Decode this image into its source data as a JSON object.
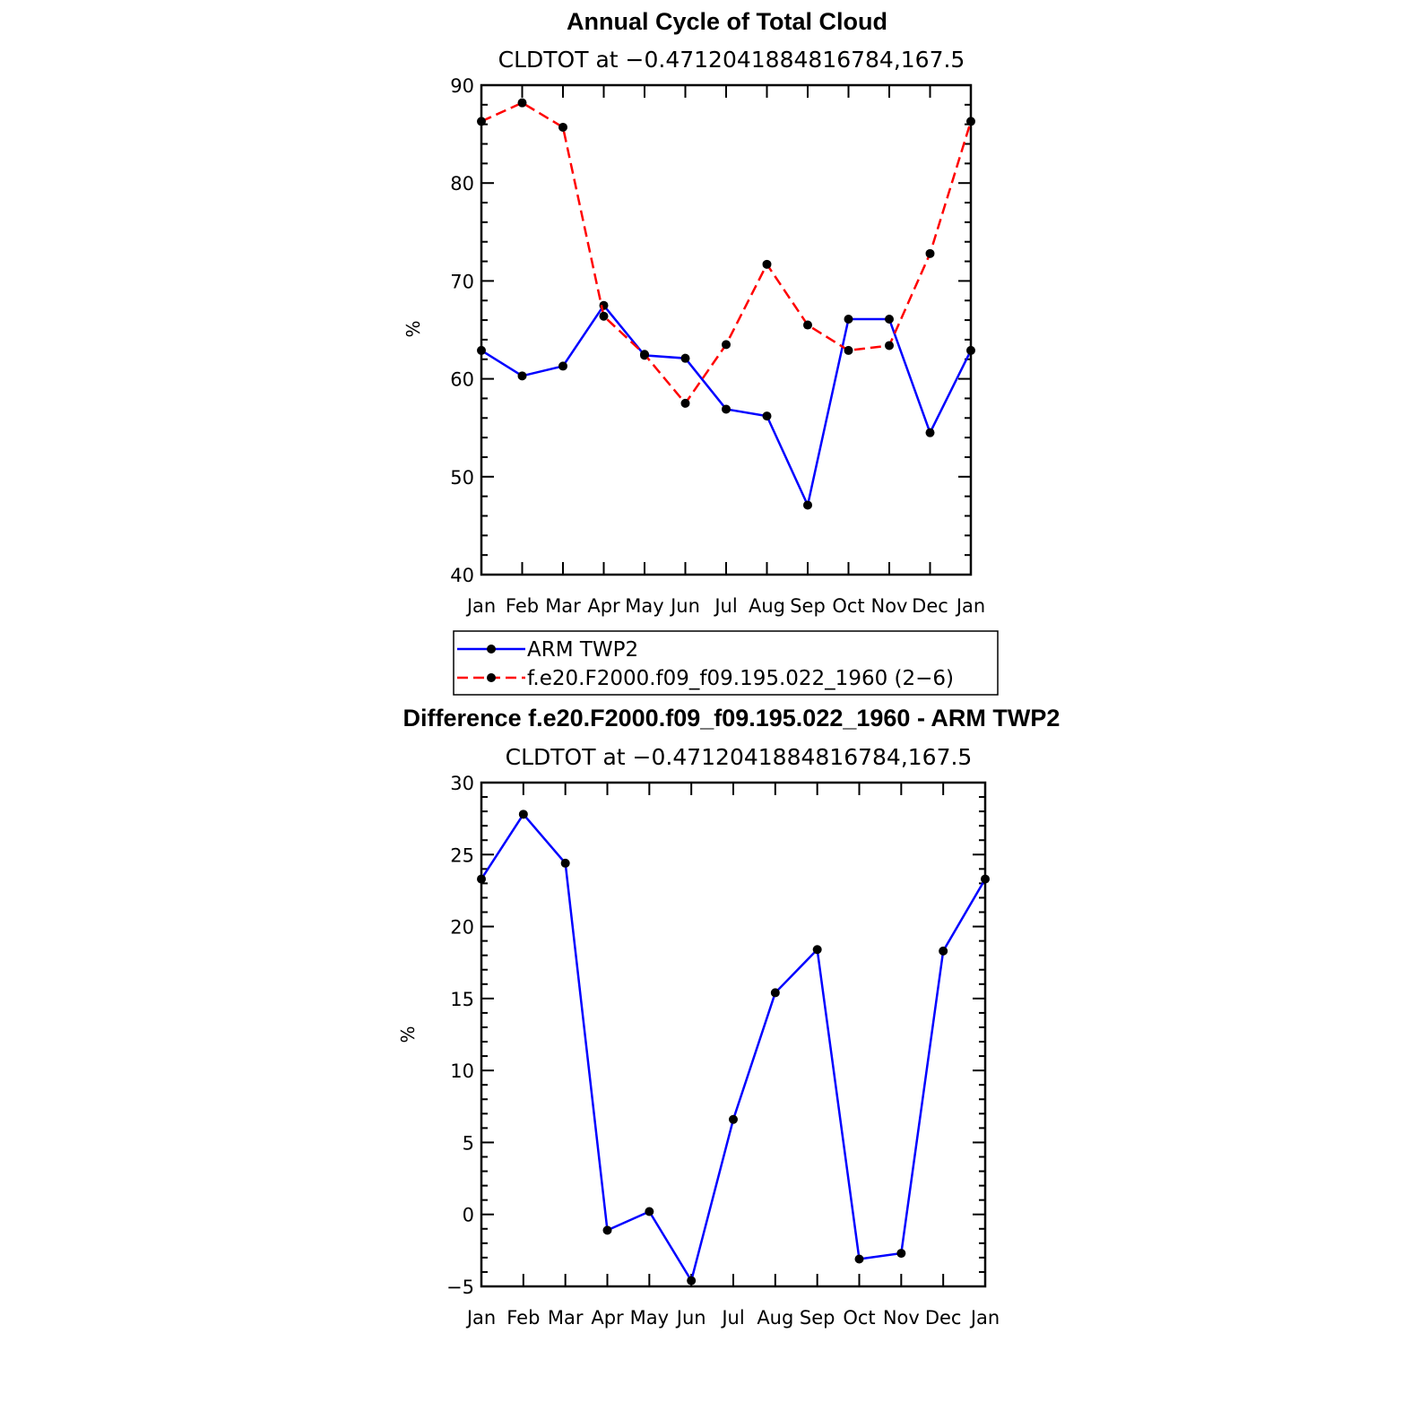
{
  "chart_data": [
    {
      "type": "line",
      "title": "Annual Cycle of Total Cloud",
      "subtitle": "CLDTOT at −0.4712041884816784,167.5",
      "xlabel": "",
      "ylabel": "%",
      "categories": [
        "Jan",
        "Feb",
        "Mar",
        "Apr",
        "May",
        "Jun",
        "Jul",
        "Aug",
        "Sep",
        "Oct",
        "Nov",
        "Dec",
        "Jan"
      ],
      "ylim": [
        40,
        90
      ],
      "yticks": [
        "40",
        "50",
        "60",
        "70",
        "80",
        "90"
      ],
      "grid": false,
      "legend": "below",
      "series": [
        {
          "name": "ARM TWP2",
          "color": "#0000ff",
          "dash": "solid",
          "values": [
            62.9,
            60.3,
            61.3,
            67.5,
            62.4,
            62.1,
            56.9,
            56.2,
            47.1,
            66.1,
            66.1,
            54.5,
            62.9
          ]
        },
        {
          "name": "f.e20.F2000.f09_f09.195.022_1960 (2−6)",
          "color": "#ff0000",
          "dash": "dashed",
          "values": [
            86.3,
            88.2,
            85.7,
            66.4,
            62.5,
            57.5,
            63.5,
            71.7,
            65.5,
            62.9,
            63.4,
            72.8,
            86.3
          ]
        }
      ]
    },
    {
      "type": "line",
      "title": "Difference f.e20.F2000.f09_f09.195.022_1960 - ARM TWP2",
      "subtitle": "CLDTOT at −0.4712041884816784,167.5",
      "xlabel": "",
      "ylabel": "%",
      "categories": [
        "Jan",
        "Feb",
        "Mar",
        "Apr",
        "May",
        "Jun",
        "Jul",
        "Aug",
        "Sep",
        "Oct",
        "Nov",
        "Dec",
        "Jan"
      ],
      "ylim": [
        -5,
        30
      ],
      "yticks": [
        "−5",
        "0",
        "5",
        "10",
        "15",
        "20",
        "25",
        "30"
      ],
      "grid": false,
      "series": [
        {
          "color": "#0000ff",
          "dash": "solid",
          "values": [
            23.3,
            27.8,
            24.4,
            -1.1,
            0.2,
            -4.6,
            6.6,
            15.4,
            18.4,
            -3.1,
            -2.7,
            18.3,
            23.3
          ]
        }
      ]
    }
  ]
}
